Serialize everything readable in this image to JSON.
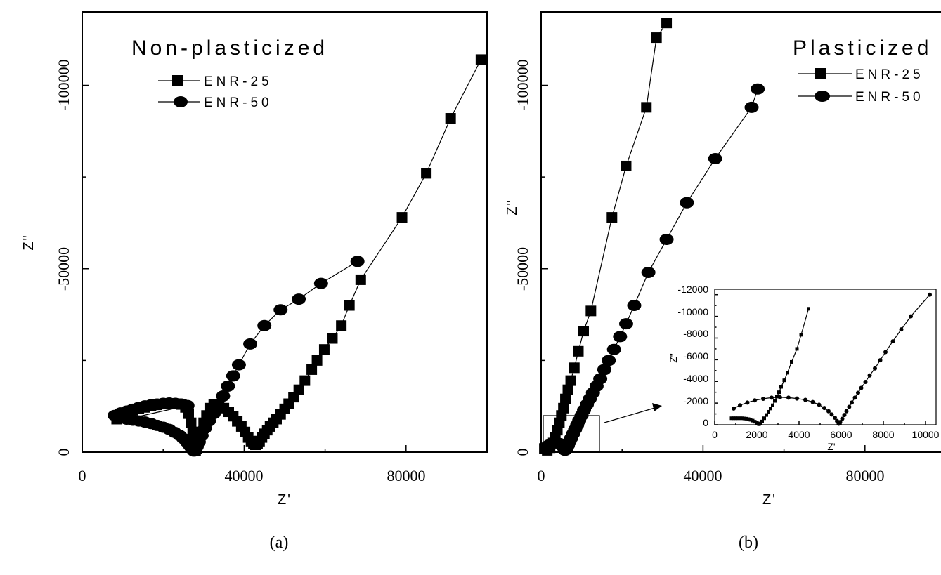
{
  "chart_data": [
    {
      "panel": "a",
      "type": "scatter",
      "title": "Non-plasticized",
      "xlabel": "Z'",
      "ylabel": "Z\"",
      "xlim": [
        0,
        100000
      ],
      "ylim": [
        0,
        -120000
      ],
      "xticks": [
        "0",
        "40000",
        "80000"
      ],
      "yticks": [
        "0",
        "-50000",
        "-100000"
      ],
      "legend": "top-left",
      "panel_label": "(a)",
      "series": [
        {
          "name": "ENR-25",
          "marker": "square",
          "points": [
            [
              8500,
              -9000
            ],
            [
              9500,
              -9800
            ],
            [
              10500,
              -10400
            ],
            [
              11500,
              -10900
            ],
            [
              12500,
              -11400
            ],
            [
              14000,
              -11800
            ],
            [
              15500,
              -12200
            ],
            [
              17000,
              -12600
            ],
            [
              18500,
              -12900
            ],
            [
              20000,
              -13100
            ],
            [
              21500,
              -13200
            ],
            [
              23000,
              -13200
            ],
            [
              24500,
              -13000
            ],
            [
              25500,
              -12200
            ],
            [
              26300,
              -10500
            ],
            [
              26900,
              -8000
            ],
            [
              27300,
              -5500
            ],
            [
              27600,
              -3000
            ],
            [
              27800,
              -1000
            ],
            [
              28000,
              -300
            ],
            [
              28300,
              -1000
            ],
            [
              28700,
              -3000
            ],
            [
              29300,
              -5500
            ],
            [
              30000,
              -8000
            ],
            [
              30700,
              -10000
            ],
            [
              31500,
              -12000
            ],
            [
              32500,
              -13000
            ],
            [
              33700,
              -12900
            ],
            [
              35000,
              -12000
            ],
            [
              36200,
              -11000
            ],
            [
              37300,
              -9800
            ],
            [
              38300,
              -8400
            ],
            [
              39300,
              -7000
            ],
            [
              40200,
              -5500
            ],
            [
              41000,
              -4000
            ],
            [
              41700,
              -3000
            ],
            [
              42300,
              -2200
            ],
            [
              42800,
              -2000
            ],
            [
              43300,
              -2300
            ],
            [
              43800,
              -3000
            ],
            [
              44400,
              -4000
            ],
            [
              45000,
              -5000
            ],
            [
              45700,
              -6000
            ],
            [
              46400,
              -7000
            ],
            [
              47200,
              -8000
            ],
            [
              48000,
              -9000
            ],
            [
              49000,
              -10300
            ],
            [
              50000,
              -11800
            ],
            [
              51000,
              -13200
            ],
            [
              52200,
              -15000
            ],
            [
              53500,
              -17000
            ],
            [
              55000,
              -19500
            ],
            [
              56700,
              -22500
            ],
            [
              58000,
              -25000
            ],
            [
              59800,
              -28000
            ],
            [
              61800,
              -31000
            ],
            [
              64000,
              -34500
            ],
            [
              66000,
              -40000
            ],
            [
              68800,
              -47000
            ],
            [
              79000,
              -64000
            ],
            [
              85000,
              -76000
            ],
            [
              91000,
              -91000
            ],
            [
              98500,
              -107000
            ]
          ]
        },
        {
          "name": "ENR-50",
          "marker": "circle",
          "points": [
            [
              8000,
              -10000
            ],
            [
              9500,
              -10700
            ],
            [
              11000,
              -11200
            ],
            [
              12500,
              -11700
            ],
            [
              14000,
              -12200
            ],
            [
              15500,
              -12600
            ],
            [
              17000,
              -12900
            ],
            [
              18500,
              -13100
            ],
            [
              20000,
              -13300
            ],
            [
              21500,
              -13400
            ],
            [
              23000,
              -13300
            ],
            [
              24500,
              -13100
            ],
            [
              26000,
              -12700
            ],
            [
              11000,
              -9000
            ],
            [
              12500,
              -8700
            ],
            [
              14000,
              -8500
            ],
            [
              15500,
              -8200
            ],
            [
              17000,
              -7800
            ],
            [
              18500,
              -7300
            ],
            [
              20000,
              -6800
            ],
            [
              21500,
              -6200
            ],
            [
              22800,
              -5400
            ],
            [
              24000,
              -4600
            ],
            [
              25000,
              -3700
            ],
            [
              25800,
              -2800
            ],
            [
              26400,
              -2000
            ],
            [
              26900,
              -1300
            ],
            [
              27300,
              -700
            ],
            [
              27600,
              -300
            ],
            [
              27900,
              -600
            ],
            [
              28300,
              -1500
            ],
            [
              28800,
              -2800
            ],
            [
              29500,
              -4500
            ],
            [
              30300,
              -6500
            ],
            [
              31300,
              -8500
            ],
            [
              32500,
              -10500
            ],
            [
              33600,
              -12800
            ],
            [
              34800,
              -15300
            ],
            [
              36000,
              -18000
            ],
            [
              37300,
              -20800
            ],
            [
              38700,
              -23800
            ],
            [
              41500,
              -29500
            ],
            [
              45000,
              -34500
            ],
            [
              49000,
              -38800
            ],
            [
              53500,
              -41700
            ],
            [
              59000,
              -46000
            ],
            [
              68000,
              -52000
            ]
          ]
        }
      ]
    },
    {
      "panel": "b",
      "type": "scatter",
      "title": "Plasticized",
      "xlabel": "Z'",
      "ylabel": "Z\"",
      "xlim": [
        0,
        100000
      ],
      "ylim": [
        0,
        -120000
      ],
      "xticks": [
        "0",
        "40000",
        "80000"
      ],
      "yticks": [
        "0",
        "-50000",
        "-100000"
      ],
      "legend": "top-right",
      "panel_label": "(b)",
      "series": [
        {
          "name": "ENR-25",
          "marker": "square",
          "points": [
            [
              800,
              -1000
            ],
            [
              1500,
              -500
            ],
            [
              2200,
              -1200
            ],
            [
              3000,
              -2500
            ],
            [
              3500,
              -4000
            ],
            [
              4000,
              -6000
            ],
            [
              4500,
              -8000
            ],
            [
              5000,
              -10000
            ],
            [
              5500,
              -12000
            ],
            [
              6000,
              -14500
            ],
            [
              6600,
              -17000
            ],
            [
              7300,
              -19500
            ],
            [
              8200,
              -23000
            ],
            [
              9200,
              -27500
            ],
            [
              10500,
              -33000
            ],
            [
              12300,
              -38500
            ],
            [
              17500,
              -64000
            ],
            [
              21000,
              -78000
            ],
            [
              26000,
              -94000
            ],
            [
              28500,
              -113000
            ],
            [
              31000,
              -117000
            ]
          ]
        },
        {
          "name": "ENR-50",
          "marker": "circle",
          "points": [
            [
              1500,
              -1600
            ],
            [
              2000,
              -2000
            ],
            [
              2600,
              -2300
            ],
            [
              3200,
              -2500
            ],
            [
              4000,
              -2500
            ],
            [
              4700,
              -2300
            ],
            [
              5200,
              -1800
            ],
            [
              5600,
              -1200
            ],
            [
              5900,
              -500
            ],
            [
              6200,
              -900
            ],
            [
              6600,
              -1800
            ],
            [
              7000,
              -2800
            ],
            [
              7400,
              -3800
            ],
            [
              7900,
              -5000
            ],
            [
              8400,
              -6200
            ],
            [
              8900,
              -7400
            ],
            [
              9400,
              -8600
            ],
            [
              10000,
              -10000
            ],
            [
              10600,
              -11500
            ],
            [
              11300,
              -13000
            ],
            [
              12000,
              -14500
            ],
            [
              12800,
              -16200
            ],
            [
              13700,
              -18000
            ],
            [
              14600,
              -20000
            ],
            [
              15600,
              -22500
            ],
            [
              16700,
              -25000
            ],
            [
              18000,
              -28000
            ],
            [
              19500,
              -31500
            ],
            [
              21000,
              -35000
            ],
            [
              23000,
              -40000
            ],
            [
              26500,
              -49000
            ],
            [
              31000,
              -58000
            ],
            [
              36000,
              -68000
            ],
            [
              43000,
              -80000
            ],
            [
              52000,
              -94000
            ],
            [
              53500,
              -99000
            ]
          ]
        }
      ]
    },
    {
      "panel": "b-inset",
      "type": "scatter",
      "xlabel": "Z'",
      "ylabel": "Z\"",
      "xlim": [
        0,
        10500
      ],
      "ylim": [
        0,
        -12500
      ],
      "xticks": [
        "0",
        "2000",
        "4000",
        "6000",
        "8000",
        "10000"
      ],
      "yticks": [
        "0",
        "-2000",
        "-4000",
        "-6000",
        "-8000",
        "-10000",
        "-12000"
      ],
      "series": [
        {
          "name": "ENR-25",
          "marker": "square",
          "points": [
            [
              800,
              -600
            ],
            [
              900,
              -600
            ],
            [
              1000,
              -600
            ],
            [
              1100,
              -600
            ],
            [
              1200,
              -600
            ],
            [
              1300,
              -600
            ],
            [
              1400,
              -580
            ],
            [
              1500,
              -560
            ],
            [
              1600,
              -520
            ],
            [
              1700,
              -460
            ],
            [
              1800,
              -380
            ],
            [
              1900,
              -280
            ],
            [
              2000,
              -180
            ],
            [
              2050,
              -100
            ],
            [
              2100,
              -50
            ],
            [
              2150,
              -120
            ],
            [
              2250,
              -300
            ],
            [
              2350,
              -600
            ],
            [
              2450,
              -900
            ],
            [
              2550,
              -1200
            ],
            [
              2650,
              -1500
            ],
            [
              2750,
              -1800
            ],
            [
              2850,
              -2200
            ],
            [
              2950,
              -2600
            ],
            [
              3050,
              -3000
            ],
            [
              3150,
              -3500
            ],
            [
              3300,
              -4100
            ],
            [
              3450,
              -4800
            ],
            [
              3650,
              -5800
            ],
            [
              3900,
              -7000
            ],
            [
              4100,
              -8300
            ],
            [
              4450,
              -10700
            ]
          ]
        },
        {
          "name": "ENR-50",
          "marker": "circle",
          "points": [
            [
              900,
              -1500
            ],
            [
              1200,
              -1800
            ],
            [
              1550,
              -2050
            ],
            [
              1900,
              -2250
            ],
            [
              2300,
              -2400
            ],
            [
              2700,
              -2500
            ],
            [
              3100,
              -2530
            ],
            [
              3500,
              -2500
            ],
            [
              3900,
              -2420
            ],
            [
              4300,
              -2300
            ],
            [
              4650,
              -2100
            ],
            [
              4950,
              -1850
            ],
            [
              5200,
              -1550
            ],
            [
              5400,
              -1250
            ],
            [
              5550,
              -950
            ],
            [
              5700,
              -650
            ],
            [
              5800,
              -350
            ],
            [
              5880,
              -100
            ],
            [
              5950,
              -250
            ],
            [
              6050,
              -550
            ],
            [
              6150,
              -900
            ],
            [
              6250,
              -1250
            ],
            [
              6380,
              -1650
            ],
            [
              6500,
              -2050
            ],
            [
              6650,
              -2500
            ],
            [
              6800,
              -2950
            ],
            [
              6950,
              -3400
            ],
            [
              7150,
              -3950
            ],
            [
              7350,
              -4550
            ],
            [
              7600,
              -5200
            ],
            [
              7850,
              -5950
            ],
            [
              8100,
              -6700
            ],
            [
              8450,
              -7700
            ],
            [
              8850,
              -8800
            ],
            [
              9300,
              -10000
            ],
            [
              10200,
              -12000
            ]
          ]
        }
      ]
    }
  ]
}
